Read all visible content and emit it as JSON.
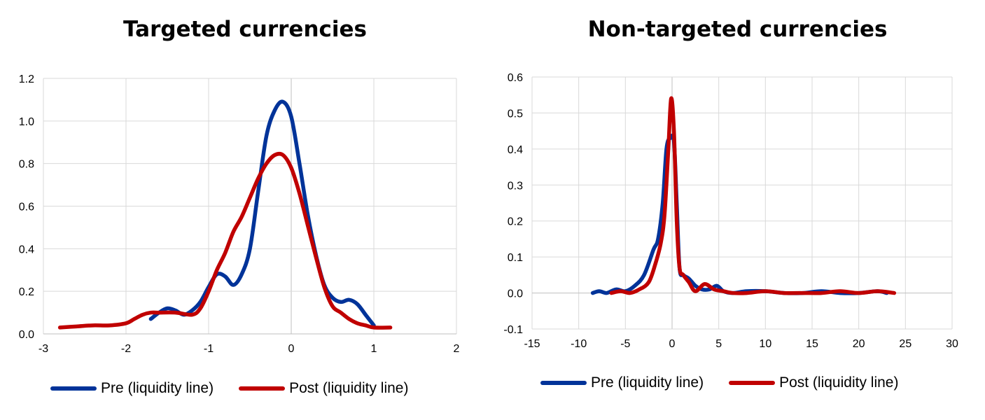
{
  "colors": {
    "pre": "#003399",
    "post": "#C00000",
    "grid": "#D9D9D9",
    "axis": "#BFBFBF"
  },
  "chart_data": [
    {
      "type": "line",
      "title": "Targeted currencies",
      "xlabel": "",
      "ylabel": "",
      "xlim": [
        -3,
        2
      ],
      "ylim": [
        0,
        1.2
      ],
      "x_ticks": [
        -3,
        -2,
        -1,
        0,
        1,
        2
      ],
      "y_ticks": [
        0.0,
        0.2,
        0.4,
        0.6,
        0.8,
        1.0,
        1.2
      ],
      "x_tick_labels": [
        "-3",
        "-2",
        "-1",
        "0",
        "1",
        "2"
      ],
      "y_tick_labels": [
        "0.0",
        "0.2",
        "0.4",
        "0.6",
        "0.8",
        "1.0",
        "1.2"
      ],
      "grid": true,
      "legend_position": "bottom",
      "series": [
        {
          "name": "Pre (liquidity line)",
          "color": "#003399",
          "x": [
            -1.7,
            -1.6,
            -1.5,
            -1.4,
            -1.3,
            -1.2,
            -1.1,
            -1.0,
            -0.9,
            -0.8,
            -0.7,
            -0.6,
            -0.5,
            -0.4,
            -0.3,
            -0.2,
            -0.1,
            0.0,
            0.1,
            0.2,
            0.3,
            0.4,
            0.5,
            0.6,
            0.7,
            0.8,
            0.9,
            1.0
          ],
          "y": [
            0.07,
            0.1,
            0.12,
            0.11,
            0.09,
            0.11,
            0.15,
            0.22,
            0.28,
            0.27,
            0.23,
            0.28,
            0.4,
            0.67,
            0.93,
            1.05,
            1.09,
            1.02,
            0.8,
            0.56,
            0.37,
            0.23,
            0.17,
            0.15,
            0.16,
            0.14,
            0.09,
            0.04
          ]
        },
        {
          "name": "Post (liquidity line)",
          "color": "#C00000",
          "x": [
            -2.8,
            -2.6,
            -2.4,
            -2.2,
            -2.0,
            -1.9,
            -1.8,
            -1.7,
            -1.6,
            -1.4,
            -1.2,
            -1.1,
            -1.0,
            -0.9,
            -0.8,
            -0.7,
            -0.6,
            -0.5,
            -0.4,
            -0.3,
            -0.2,
            -0.1,
            0.0,
            0.1,
            0.2,
            0.3,
            0.4,
            0.5,
            0.6,
            0.7,
            0.8,
            0.9,
            1.0,
            1.2
          ],
          "y": [
            0.03,
            0.035,
            0.04,
            0.04,
            0.05,
            0.07,
            0.09,
            0.1,
            0.1,
            0.1,
            0.09,
            0.12,
            0.2,
            0.3,
            0.38,
            0.48,
            0.55,
            0.64,
            0.73,
            0.8,
            0.84,
            0.84,
            0.78,
            0.66,
            0.51,
            0.36,
            0.22,
            0.13,
            0.1,
            0.07,
            0.05,
            0.04,
            0.03,
            0.03
          ]
        }
      ]
    },
    {
      "type": "line",
      "title": "Non-targeted currencies",
      "xlabel": "",
      "ylabel": "",
      "xlim": [
        -15,
        30
      ],
      "ylim": [
        -0.1,
        0.6
      ],
      "x_ticks": [
        -15,
        -10,
        -5,
        0,
        5,
        10,
        15,
        20,
        25,
        30
      ],
      "y_ticks": [
        -0.1,
        0.0,
        0.1,
        0.2,
        0.3,
        0.4,
        0.5,
        0.6
      ],
      "x_tick_labels": [
        "-15",
        "-10",
        "-5",
        "0",
        "5",
        "10",
        "15",
        "20",
        "25",
        "30"
      ],
      "y_tick_labels": [
        "-0.1",
        "0.0",
        "0.1",
        "0.2",
        "0.3",
        "0.4",
        "0.5",
        "0.6"
      ],
      "grid": true,
      "legend_position": "bottom",
      "series": [
        {
          "name": "Pre (liquidity line)",
          "color": "#003399",
          "x": [
            -8.5,
            -7.8,
            -7.0,
            -6.0,
            -5.0,
            -4.0,
            -3.0,
            -2.0,
            -1.5,
            -1.0,
            -0.6,
            -0.2,
            0.2,
            0.5,
            0.8,
            1.2,
            1.8,
            2.5,
            3.2,
            4.0,
            4.8,
            5.5,
            6.5,
            8.0,
            10.0,
            12.0,
            14.0,
            16.0,
            18.0,
            20.0,
            22.0,
            23.0
          ],
          "y": [
            0.0,
            0.005,
            0.0,
            0.01,
            0.005,
            0.02,
            0.05,
            0.12,
            0.15,
            0.25,
            0.4,
            0.43,
            0.42,
            0.25,
            0.07,
            0.05,
            0.04,
            0.02,
            0.01,
            0.01,
            0.02,
            0.005,
            0.0,
            0.005,
            0.005,
            0.0,
            0.0,
            0.005,
            0.0,
            0.0,
            0.005,
            0.0
          ]
        },
        {
          "name": "Post (liquidity line)",
          "color": "#C00000",
          "x": [
            -6.5,
            -5.5,
            -4.5,
            -3.5,
            -2.5,
            -1.8,
            -1.2,
            -0.8,
            -0.4,
            -0.1,
            0.2,
            0.5,
            0.8,
            1.2,
            1.8,
            2.5,
            3.5,
            4.5,
            5.5,
            6.5,
            8.0,
            10.0,
            12.0,
            14.0,
            16.0,
            18.0,
            20.0,
            22.0,
            23.8
          ],
          "y": [
            0.0,
            0.005,
            0.0,
            0.01,
            0.03,
            0.08,
            0.14,
            0.22,
            0.4,
            0.54,
            0.45,
            0.2,
            0.07,
            0.05,
            0.03,
            0.005,
            0.025,
            0.01,
            0.005,
            0.0,
            0.0,
            0.005,
            0.0,
            0.0,
            0.0,
            0.005,
            0.0,
            0.005,
            0.0
          ]
        }
      ]
    }
  ]
}
